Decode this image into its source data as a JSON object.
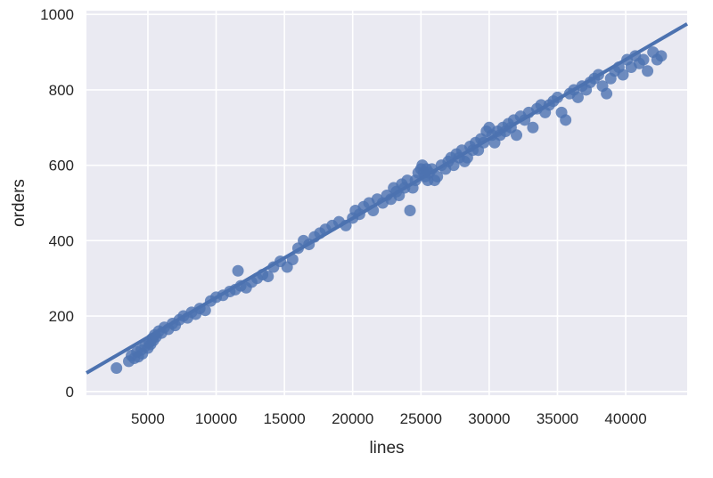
{
  "chart_data": {
    "type": "scatter",
    "title": "",
    "xlabel": "lines",
    "ylabel": "orders",
    "xlim": [
      500,
      44500
    ],
    "ylim": [
      -10,
      1010
    ],
    "xticks": [
      5000,
      10000,
      15000,
      20000,
      25000,
      30000,
      35000,
      40000
    ],
    "yticks": [
      0,
      200,
      400,
      600,
      800,
      1000
    ],
    "xtick_labels": [
      "5000",
      "10000",
      "15000",
      "20000",
      "25000",
      "30000",
      "35000",
      "40000"
    ],
    "ytick_labels": [
      "0",
      "200",
      "400",
      "600",
      "800",
      "1000"
    ],
    "grid": true,
    "colors": {
      "background": "#eaeaf2",
      "series": "#4c72b0",
      "grid": "#ffffff"
    },
    "regression_line": {
      "x": [
        500,
        44500
      ],
      "y": [
        49,
        975
      ]
    },
    "series": [
      {
        "x": [
          2700,
          3600,
          3800,
          4000,
          4200,
          4300,
          4500,
          4600,
          4800,
          5000,
          5100,
          5200,
          5300,
          5400,
          5500,
          5600,
          5800,
          6000,
          6200,
          6500,
          6800,
          7000,
          7300,
          7600,
          7900,
          8200,
          8500,
          8800,
          9200,
          9600,
          10000,
          10500,
          11000,
          11400,
          11600,
          11800,
          12200,
          12600,
          13000,
          13400,
          13800,
          14200,
          14700,
          15200,
          15600,
          16000,
          16400,
          16800,
          17200,
          17600,
          18000,
          18500,
          19000,
          19500,
          20000,
          20200,
          20500,
          20800,
          21200,
          21500,
          21800,
          22200,
          22500,
          22800,
          23000,
          23200,
          23400,
          23600,
          23800,
          24000,
          24200,
          24400,
          24600,
          24800,
          25000,
          25100,
          25200,
          25300,
          25400,
          25500,
          25600,
          25800,
          26000,
          26200,
          26500,
          26800,
          27000,
          27200,
          27400,
          27600,
          27800,
          28000,
          28200,
          28400,
          28600,
          28800,
          29000,
          29200,
          29400,
          29600,
          29800,
          30000,
          30200,
          30400,
          30600,
          30800,
          31000,
          31200,
          31400,
          31600,
          31800,
          32000,
          32300,
          32600,
          32900,
          33200,
          33500,
          33800,
          34100,
          34400,
          34700,
          35000,
          35300,
          35600,
          35900,
          36200,
          36500,
          36800,
          37100,
          37400,
          37700,
          38000,
          38300,
          38600,
          38900,
          39200,
          39500,
          39800,
          40100,
          40400,
          40700,
          41000,
          41300,
          41600,
          42000,
          42300,
          42600
        ],
        "y": [
          62,
          80,
          95,
          88,
          105,
          92,
          110,
          100,
          120,
          115,
          130,
          125,
          140,
          135,
          150,
          145,
          160,
          155,
          170,
          165,
          180,
          175,
          190,
          200,
          195,
          210,
          205,
          220,
          215,
          240,
          250,
          255,
          265,
          270,
          320,
          280,
          275,
          290,
          300,
          310,
          305,
          330,
          345,
          330,
          350,
          380,
          400,
          390,
          410,
          420,
          430,
          440,
          450,
          440,
          460,
          480,
          470,
          490,
          500,
          480,
          510,
          500,
          520,
          510,
          540,
          530,
          520,
          550,
          540,
          560,
          480,
          540,
          560,
          580,
          590,
          600,
          580,
          570,
          590,
          560,
          580,
          590,
          560,
          570,
          600,
          590,
          610,
          620,
          600,
          630,
          620,
          640,
          610,
          620,
          650,
          640,
          660,
          640,
          670,
          660,
          690,
          700,
          680,
          660,
          690,
          680,
          700,
          690,
          710,
          700,
          720,
          680,
          730,
          720,
          740,
          700,
          750,
          760,
          740,
          760,
          770,
          780,
          740,
          720,
          790,
          800,
          780,
          810,
          800,
          820,
          830,
          840,
          810,
          790,
          830,
          850,
          860,
          840,
          880,
          860,
          890,
          870,
          880,
          850,
          900,
          880,
          890
        ]
      }
    ]
  }
}
